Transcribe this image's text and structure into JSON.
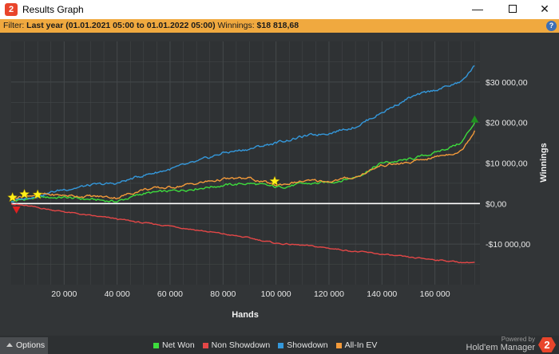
{
  "window": {
    "title": "Results Graph",
    "minimize_glyph": "—",
    "close_glyph": "✕"
  },
  "filter": {
    "prefix": "Filter:",
    "range": "Last year (01.01.2021 05:00 to 01.01.2022 05:00)",
    "winnings_label": "Winnings:",
    "winnings_value": "$18 818,68",
    "help_glyph": "?"
  },
  "footer": {
    "options_label": "Options",
    "brand_small": "Powered by",
    "brand_name": "Hold'em Manager",
    "brand_logo": "2"
  },
  "colors": {
    "net_won": "#3ddc3d",
    "non_showdown": "#e44747",
    "showdown": "#3498db",
    "allin_ev": "#f39a3a",
    "zero_line": "#ffffff",
    "star": "#ffef1a",
    "grid": "#45494b"
  },
  "chart_data": {
    "type": "line",
    "xlabel": "Hands",
    "ylabel": "Winnings",
    "xlim": [
      0,
      177000
    ],
    "ylim": [
      -20000,
      40000
    ],
    "x_ticks": [
      20000,
      40000,
      60000,
      80000,
      100000,
      120000,
      140000,
      160000
    ],
    "x_tick_labels": [
      "20 000",
      "40 000",
      "60 000",
      "80 000",
      "100 000",
      "120 000",
      "140 000",
      "160 000"
    ],
    "y_ticks": [
      -10000,
      0,
      10000,
      20000,
      30000
    ],
    "y_tick_labels": [
      "-$10 000,00",
      "$0,00",
      "$10 000,00",
      "$20 000,00",
      "$30 000,00"
    ],
    "x": [
      0,
      10000,
      20000,
      30000,
      40000,
      50000,
      60000,
      70000,
      80000,
      90000,
      100000,
      110000,
      120000,
      130000,
      140000,
      150000,
      160000,
      170000,
      175000
    ],
    "series": [
      {
        "name": "Net Won",
        "color": "#3ddc3d",
        "values": [
          500,
          1500,
          1500,
          1000,
          500,
          2500,
          3000,
          3800,
          4500,
          5000,
          4000,
          4800,
          5200,
          6500,
          10000,
          10800,
          12500,
          15000,
          20000
        ]
      },
      {
        "name": "Non Showdown",
        "color": "#e44747",
        "values": [
          0,
          -1000,
          -2000,
          -3000,
          -3800,
          -4800,
          -5500,
          -6500,
          -7500,
          -8500,
          -9800,
          -10300,
          -11000,
          -11800,
          -12500,
          -13300,
          -13800,
          -14500,
          -14500
        ]
      },
      {
        "name": "Showdown",
        "color": "#3498db",
        "values": [
          500,
          2000,
          3500,
          4500,
          5000,
          7000,
          8500,
          10200,
          12500,
          13500,
          15000,
          16500,
          17500,
          19000,
          22500,
          26000,
          28000,
          30000,
          34000
        ]
      },
      {
        "name": "All-In EV",
        "color": "#f39a3a",
        "values": [
          1500,
          2300,
          2000,
          1800,
          1500,
          3500,
          4000,
          5000,
          6000,
          6200,
          4500,
          5500,
          5500,
          6500,
          9500,
          10000,
          11500,
          13000,
          18000
        ]
      }
    ],
    "markers": [
      {
        "type": "star",
        "x": 500,
        "y": 1500
      },
      {
        "type": "star",
        "x": 5000,
        "y": 2300
      },
      {
        "type": "star",
        "x": 10000,
        "y": 2200
      },
      {
        "type": "star",
        "x": 99500,
        "y": 5500
      },
      {
        "type": "triangle-down",
        "x": 2000,
        "y": -1500,
        "color": "#e02020"
      },
      {
        "type": "triangle-up",
        "x": 175000,
        "y": 20800,
        "color": "#1f8f1f"
      }
    ],
    "grid": true,
    "legend": "bottom"
  }
}
